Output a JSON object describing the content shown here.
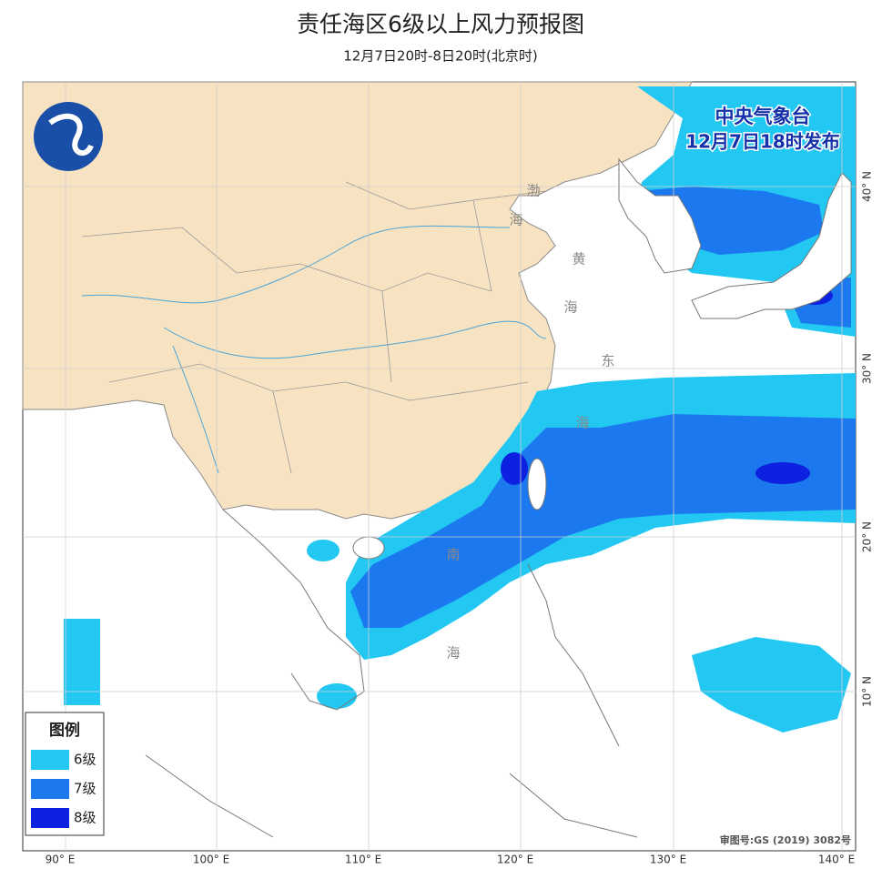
{
  "header": {
    "title": "责任海区6级以上风力预报图",
    "subtitle": "12月7日20时-8日20时(北京时)"
  },
  "issuer": {
    "name": "中央气象台",
    "time": "12月7日18时发布"
  },
  "legend": {
    "title": "图例",
    "items": [
      {
        "label": "6级",
        "color": "#22c8f2"
      },
      {
        "label": "7级",
        "color": "#1c78ee"
      },
      {
        "label": "8级",
        "color": "#0c22e0"
      }
    ]
  },
  "axes": {
    "longitude": [
      "90° E",
      "100° E",
      "110° E",
      "120° E",
      "130° E",
      "140° E"
    ],
    "latitude": [
      "40° N",
      "30° N",
      "20° N",
      "10° N"
    ]
  },
  "sea_labels": [
    "渤",
    "海",
    "黄",
    "海",
    "东",
    "海",
    "南",
    "海"
  ],
  "footer": {
    "approval": "审图号:GS (2019) 3082号"
  }
}
